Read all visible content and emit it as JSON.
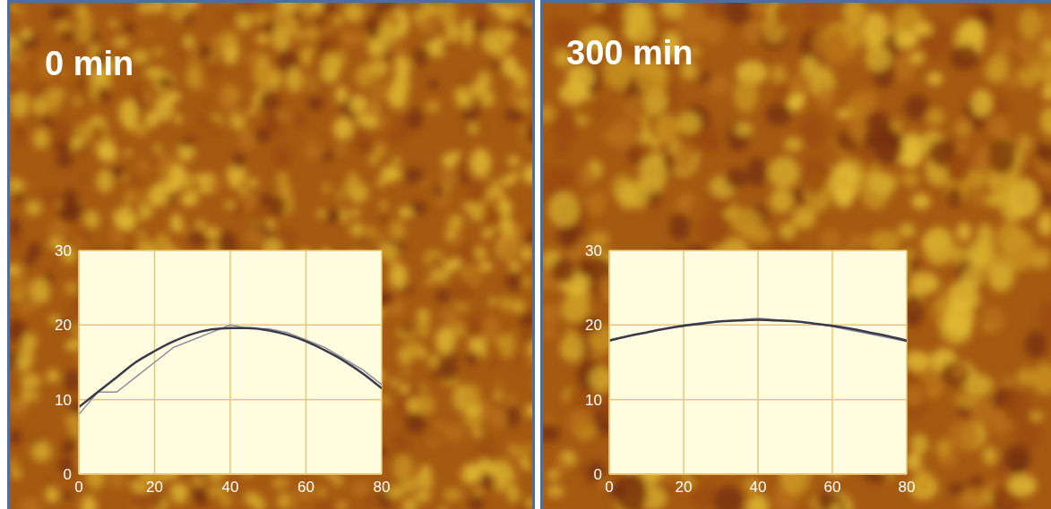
{
  "chart_data": [
    {
      "type": "line",
      "title": "0 min",
      "x": [
        0,
        5,
        10,
        15,
        20,
        25,
        30,
        35,
        40,
        45,
        50,
        55,
        60,
        65,
        70,
        75,
        80
      ],
      "series": [
        {
          "color": "#8c8c9c",
          "values": [
            8,
            11,
            11,
            13,
            15,
            17,
            18,
            19,
            20,
            19.5,
            19.5,
            19,
            18,
            17,
            15.5,
            14,
            12
          ]
        },
        {
          "color": "#3a3a4a",
          "values": [
            9,
            11,
            13,
            15,
            16.5,
            17.8,
            18.8,
            19.4,
            19.6,
            19.6,
            19.3,
            18.7,
            17.8,
            16.6,
            15.2,
            13.5,
            11.5
          ]
        }
      ],
      "xlim": [
        0,
        80
      ],
      "ylim": [
        0,
        30
      ],
      "xticks": [
        0,
        20,
        40,
        60,
        80
      ],
      "yticks": [
        0,
        10,
        20,
        30
      ],
      "grid": true
    },
    {
      "type": "line",
      "title": "300 min",
      "x": [
        0,
        5,
        10,
        15,
        20,
        25,
        30,
        35,
        40,
        45,
        50,
        55,
        60,
        65,
        70,
        75,
        80
      ],
      "series": [
        {
          "color": "#8c8c9c",
          "values": [
            18,
            18.5,
            19,
            19.5,
            20,
            20.3,
            20.5,
            20.7,
            20.9,
            20.7,
            20.5,
            20.2,
            19.8,
            19.3,
            18.8,
            18.3,
            17.8
          ]
        },
        {
          "color": "#3a3a4a",
          "values": [
            17.9,
            18.5,
            19,
            19.5,
            19.9,
            20.2,
            20.5,
            20.6,
            20.7,
            20.6,
            20.5,
            20.2,
            19.9,
            19.5,
            19,
            18.5,
            17.9
          ]
        }
      ],
      "xlim": [
        0,
        80
      ],
      "ylim": [
        0,
        30
      ],
      "xticks": [
        0,
        20,
        40,
        60,
        80
      ],
      "yticks": [
        0,
        10,
        20,
        30
      ],
      "grid": true
    }
  ]
}
